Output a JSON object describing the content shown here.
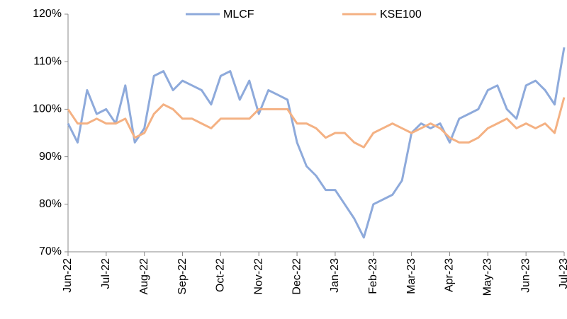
{
  "chart_data": {
    "type": "line",
    "categories": [
      "Jun-22",
      null,
      null,
      null,
      "Jul-22",
      null,
      null,
      null,
      "Aug-22",
      null,
      null,
      null,
      "Sep-22",
      null,
      null,
      null,
      "Oct-22",
      null,
      null,
      null,
      "Nov-22",
      null,
      null,
      null,
      "Dec-22",
      null,
      null,
      null,
      "Jan-23",
      null,
      null,
      null,
      "Feb-23",
      null,
      null,
      null,
      "Mar-23",
      null,
      null,
      null,
      "Apr-23",
      null,
      null,
      null,
      "May-23",
      null,
      null,
      null,
      "Jun-23",
      null,
      null,
      null,
      "Jul-23"
    ],
    "series": [
      {
        "name": "MLCF",
        "color": "#8eaadb",
        "values": [
          97,
          93,
          104,
          99,
          100,
          97,
          105,
          93,
          96,
          107,
          108,
          104,
          106,
          105,
          104,
          101,
          107,
          108,
          102,
          106,
          99,
          104,
          103,
          102,
          93,
          88,
          86,
          83,
          83,
          80,
          77,
          73,
          80,
          81,
          82,
          85,
          95,
          97,
          96,
          97,
          93,
          98,
          99,
          100,
          104,
          105,
          100,
          98,
          105,
          106,
          104,
          101,
          113
        ]
      },
      {
        "name": "KSE100",
        "color": "#f4b183",
        "values": [
          100,
          97,
          97,
          98,
          97,
          97,
          98,
          94,
          95,
          99,
          101,
          100,
          98,
          98,
          97,
          96,
          98,
          98,
          98,
          98,
          100,
          100,
          100,
          100,
          97,
          97,
          96,
          94,
          95,
          95,
          93,
          92,
          95,
          96,
          97,
          96,
          95,
          96,
          97,
          96,
          94,
          93,
          93,
          94,
          96,
          97,
          98,
          96,
          97,
          96,
          97,
          95,
          102.5
        ]
      }
    ],
    "ylim": [
      70,
      120
    ],
    "yticks": [
      {
        "value": 70,
        "label": "70%"
      },
      {
        "value": 80,
        "label": "80%"
      },
      {
        "value": 90,
        "label": "90%"
      },
      {
        "value": 100,
        "label": "100%"
      },
      {
        "value": 110,
        "label": "110%"
      },
      {
        "value": 120,
        "label": "120%"
      }
    ],
    "grid": false,
    "legend": "top"
  }
}
